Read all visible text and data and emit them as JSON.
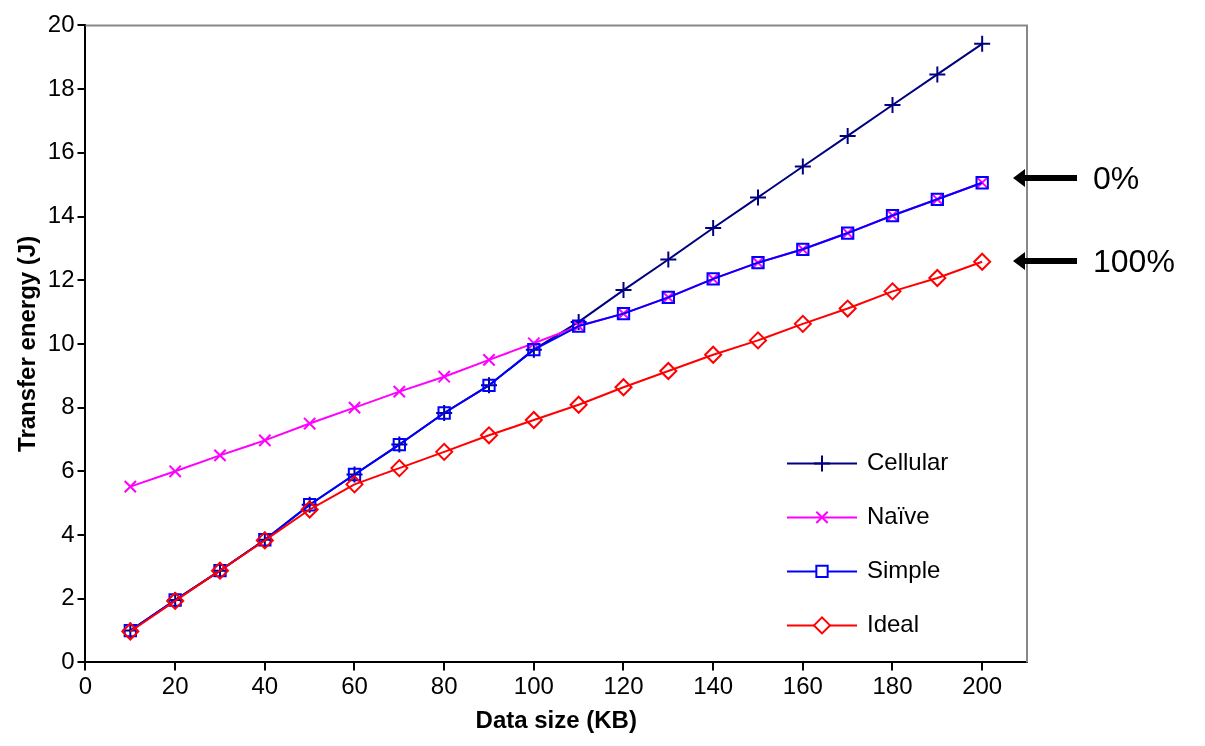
{
  "chart_data": {
    "type": "line",
    "xlabel": "Data size (KB)",
    "ylabel": "Transfer energy (J)",
    "x": [
      10,
      20,
      30,
      40,
      50,
      60,
      70,
      80,
      90,
      100,
      110,
      120,
      130,
      140,
      150,
      160,
      170,
      180,
      190,
      200
    ],
    "xlim": [
      0,
      210
    ],
    "xticks": [
      0,
      20,
      40,
      60,
      80,
      100,
      120,
      140,
      160,
      180,
      200
    ],
    "ylim": [
      0,
      20
    ],
    "yticks": [
      0,
      2,
      4,
      6,
      8,
      10,
      12,
      14,
      16,
      18,
      20
    ],
    "grid": false,
    "legend": "bottom right",
    "line_style": "solid",
    "series": [
      {
        "name": "Cellular",
        "color": "#000080",
        "marker": "plus",
        "values": [
          1.0,
          1.96,
          2.88,
          3.85,
          4.95,
          5.9,
          6.84,
          7.83,
          8.7,
          9.82,
          10.69,
          11.69,
          12.65,
          13.64,
          14.6,
          15.57,
          16.53,
          17.5,
          18.46,
          19.42
        ]
      },
      {
        "name": "Naïve",
        "color": "#ff00ff",
        "marker": "cross",
        "values": [
          5.52,
          6.0,
          6.5,
          6.97,
          7.5,
          8.0,
          8.5,
          8.97,
          9.5,
          10.02,
          10.56,
          10.95,
          11.46,
          12.04,
          12.55,
          12.97,
          13.48,
          14.03,
          14.54,
          15.06
        ]
      },
      {
        "name": "Simple",
        "color": "#0000ff",
        "marker": "square",
        "values": [
          1.0,
          1.96,
          2.88,
          3.85,
          4.95,
          5.9,
          6.84,
          7.83,
          8.7,
          9.82,
          10.56,
          10.95,
          11.46,
          12.04,
          12.55,
          12.97,
          13.48,
          14.03,
          14.54,
          15.06
        ]
      },
      {
        "name": "Ideal",
        "color": "#ff0000",
        "marker": "diamond",
        "values": [
          0.97,
          1.93,
          2.88,
          3.83,
          4.8,
          5.59,
          6.1,
          6.61,
          7.13,
          7.61,
          8.09,
          8.64,
          9.15,
          9.66,
          10.11,
          10.63,
          11.11,
          11.65,
          12.07,
          12.58
        ]
      }
    ],
    "annotations": [
      "0%",
      "100%"
    ]
  }
}
